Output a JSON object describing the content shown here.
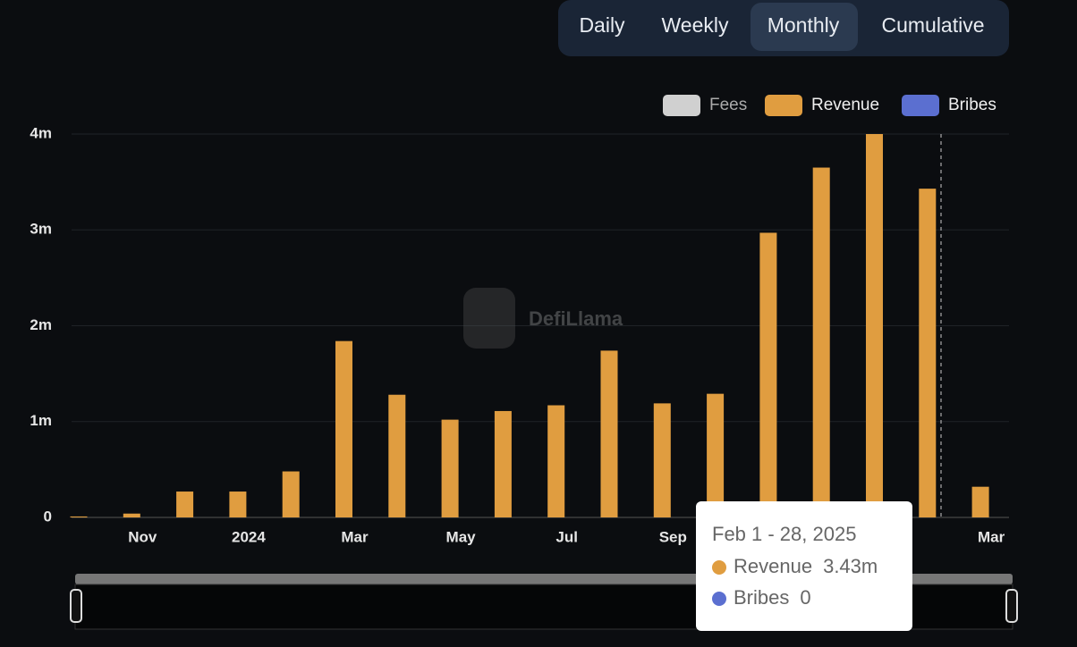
{
  "buttons": [
    "Daily",
    "Weekly",
    "Monthly",
    "Cumulative"
  ],
  "active_button": 2,
  "watermark": "DefiLlama",
  "chart_data": {
    "type": "bar",
    "legend": [
      {
        "name": "Fees",
        "color": "#d0d0d0",
        "disabled": true
      },
      {
        "name": "Revenue",
        "color": "#e09d40"
      },
      {
        "name": "Bribes",
        "color": "#5b6fd0"
      }
    ],
    "categories": [
      null,
      "Nov",
      null,
      "2024",
      null,
      "Mar",
      null,
      "May",
      null,
      "Jul",
      null,
      "Sep",
      null,
      null,
      null,
      null,
      null,
      "Mar"
    ],
    "series": [
      {
        "name": "Revenue",
        "color": "#e09d40",
        "values": [
          10000,
          40000,
          270000,
          270000,
          480000,
          1840000,
          1280000,
          1020000,
          1110000,
          1170000,
          1740000,
          1190000,
          1290000,
          2970000,
          3650000,
          4000000,
          3430000,
          320000
        ],
        "value_labels": [
          null,
          null,
          null,
          null,
          null,
          null,
          null,
          null,
          null,
          null,
          null,
          null,
          null,
          null,
          null,
          null,
          "3.43m",
          null
        ]
      },
      {
        "name": "Bribes",
        "color": "#5b6fd0",
        "values": [
          0,
          0,
          0,
          0,
          0,
          0,
          0,
          0,
          0,
          0,
          0,
          0,
          0,
          0,
          0,
          0,
          0,
          0
        ],
        "value_labels": [
          null,
          null,
          null,
          null,
          null,
          null,
          null,
          null,
          null,
          null,
          null,
          null,
          null,
          null,
          null,
          null,
          "0",
          null
        ]
      }
    ],
    "ylim": [
      0,
      4000000
    ],
    "yticks": [
      0,
      {
        "value": 1000000,
        "label": "1m"
      },
      {
        "value": 2000000,
        "label": "2m"
      },
      {
        "value": 3000000,
        "label": "3m"
      },
      {
        "value": 4000000,
        "label": "4m"
      }
    ],
    "grid": true,
    "tooltip_title": "Feb 1 - 28, 2025"
  }
}
